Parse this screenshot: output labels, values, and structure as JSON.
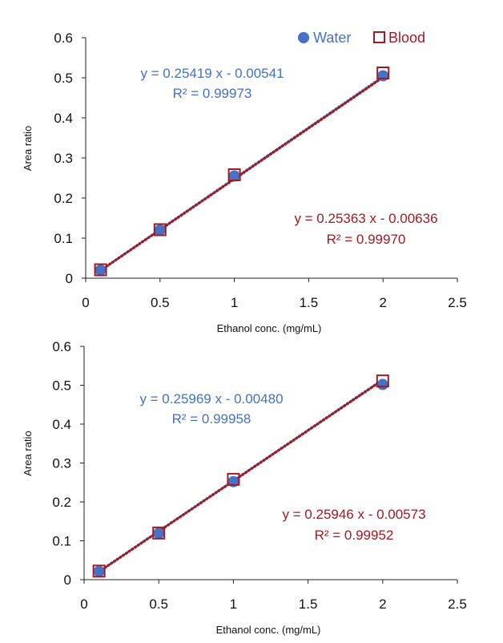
{
  "colors": {
    "water": "#4472C4",
    "blood": "#A01A23",
    "axis": "#222222",
    "text": "#111111"
  },
  "legend": [
    {
      "name": "Water",
      "marker": "filled-circle"
    },
    {
      "name": "Blood",
      "marker": "open-square"
    }
  ],
  "chart_data": [
    {
      "type": "scatter",
      "title": "",
      "xlabel": "Ethanol conc. (mg/mL)",
      "ylabel": "Area ratio",
      "xlim": [
        0,
        2.5
      ],
      "ylim": [
        0,
        0.6
      ],
      "xticks": [
        "0",
        "0.5",
        "1",
        "1.5",
        "2",
        "2.5"
      ],
      "yticks": [
        "0",
        "0.1",
        "0.2",
        "0.3",
        "0.4",
        "0.5",
        "0.6"
      ],
      "grid": false,
      "legend": "top-right",
      "series": [
        {
          "name": "Water",
          "x": [
            0.1,
            0.5,
            1,
            2
          ],
          "y": [
            0.02,
            0.12,
            0.255,
            0.505
          ],
          "trendline": {
            "slope": 0.25419,
            "intercept": -0.00541
          },
          "equation": "y = 0.25419 x - 0.00541",
          "r2": "R² = 0.99973"
        },
        {
          "name": "Blood",
          "x": [
            0.1,
            0.5,
            1,
            2
          ],
          "y": [
            0.021,
            0.121,
            0.258,
            0.512
          ],
          "trendline": {
            "slope": 0.25363,
            "intercept": -0.00636
          },
          "equation": "y = 0.25363 x - 0.00636",
          "r2": "R² = 0.99970"
        }
      ]
    },
    {
      "type": "scatter",
      "title": "",
      "xlabel": "Ethanol conc. (mg/mL)",
      "ylabel": "Area ratio",
      "xlim": [
        0,
        2.5
      ],
      "ylim": [
        0,
        0.6
      ],
      "xticks": [
        "0",
        "0.5",
        "1",
        "1.5",
        "2",
        "2.5"
      ],
      "yticks": [
        "0",
        "0.1",
        "0.2",
        "0.3",
        "0.4",
        "0.5",
        "0.6"
      ],
      "grid": false,
      "legend": "none",
      "series": [
        {
          "name": "Water",
          "x": [
            0.1,
            0.5,
            1,
            2
          ],
          "y": [
            0.021,
            0.119,
            0.252,
            0.502
          ],
          "trendline": {
            "slope": 0.25969,
            "intercept": -0.0048
          },
          "equation": "y = 0.25969 x - 0.00480",
          "r2": "R² = 0.99958"
        },
        {
          "name": "Blood",
          "x": [
            0.1,
            0.5,
            1,
            2
          ],
          "y": [
            0.022,
            0.12,
            0.258,
            0.511
          ],
          "trendline": {
            "slope": 0.25946,
            "intercept": -0.00573
          },
          "equation": "y = 0.25946 x - 0.00573",
          "r2": "R² = 0.99952"
        }
      ]
    }
  ]
}
